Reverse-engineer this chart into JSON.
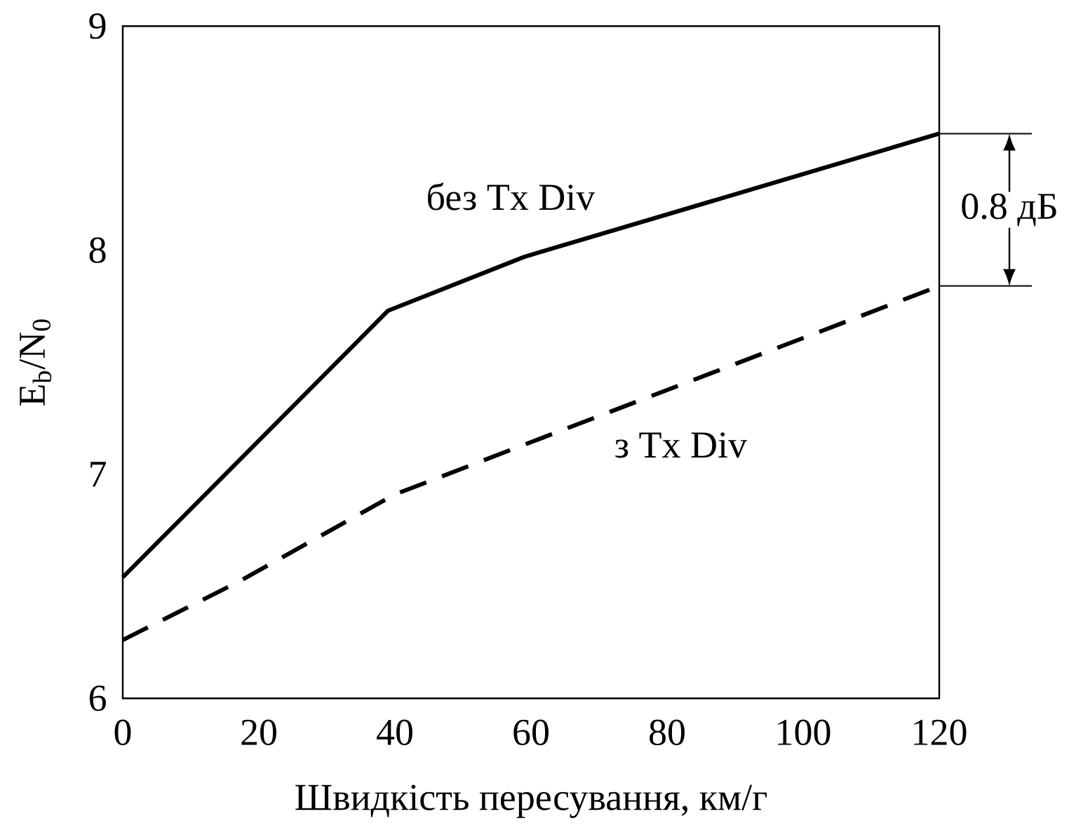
{
  "chart_data": {
    "type": "line",
    "xlabel": "Швидкість пересування, км/г",
    "ylabel": "E$_{b}$/N$_{0}$",
    "xlim": [
      0,
      120
    ],
    "ylim": [
      6,
      9
    ],
    "xticks": [
      0,
      20,
      40,
      60,
      80,
      100,
      120
    ],
    "yticks": [
      6,
      7,
      8,
      9
    ],
    "grid": false,
    "legend": false,
    "marker": "none",
    "series": [
      {
        "name": "без Tx Div",
        "color": "#000000",
        "line_style": "solid",
        "x": [
          0,
          39,
          59,
          120
        ],
        "values": [
          6.54,
          7.73,
          7.97,
          8.52
        ]
      },
      {
        "name": "з Tx Div",
        "color": "#000000",
        "line_style": "dashed",
        "x": [
          0,
          17,
          40,
          64,
          120
        ],
        "values": [
          6.26,
          6.52,
          6.91,
          7.19,
          7.84
        ]
      }
    ],
    "annotations": [
      "0.8 дБ"
    ]
  }
}
